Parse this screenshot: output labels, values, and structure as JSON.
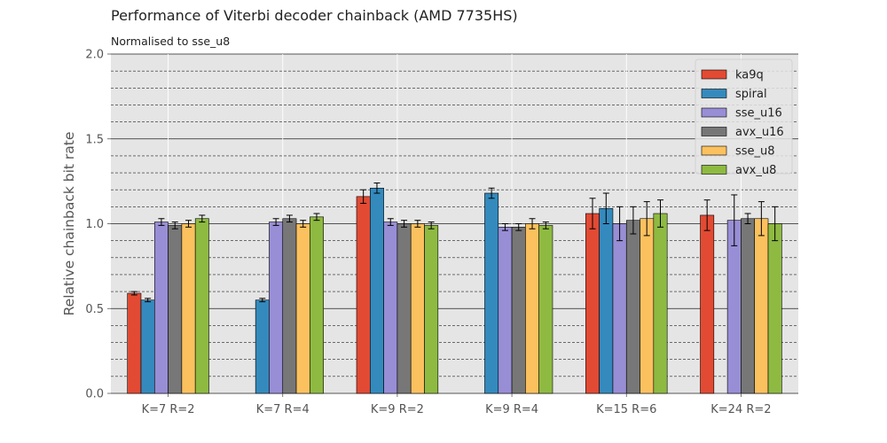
{
  "chart_data": {
    "type": "bar",
    "title": "Performance of Viterbi decoder chainback (AMD 7735HS)",
    "subtitle": "Normalised to sse_u8",
    "xlabel": "",
    "ylabel": "Relative chainback bit rate",
    "ylim": [
      0,
      2.0
    ],
    "yticks": [
      "0.0",
      "0.5",
      "1.0",
      "1.5",
      "2.0"
    ],
    "grid": true,
    "legend_position": "top-right",
    "categories": [
      "K=7 R=2",
      "K=7 R=4",
      "K=9 R=2",
      "K=9 R=4",
      "K=15 R=6",
      "K=24 R=2"
    ],
    "series": [
      {
        "name": "ka9q",
        "color": "#E24A33",
        "values": [
          0.59,
          null,
          1.16,
          null,
          1.06,
          1.05
        ],
        "errors": [
          0.01,
          null,
          0.04,
          null,
          0.09,
          0.09
        ]
      },
      {
        "name": "spiral",
        "color": "#348ABD",
        "values": [
          0.55,
          0.55,
          1.21,
          1.18,
          1.09,
          null
        ],
        "errors": [
          0.01,
          0.01,
          0.03,
          0.03,
          0.09,
          null
        ]
      },
      {
        "name": "sse_u16",
        "color": "#988ED5",
        "values": [
          1.01,
          1.01,
          1.01,
          0.98,
          1.0,
          1.02
        ],
        "errors": [
          0.02,
          0.02,
          0.02,
          0.02,
          0.1,
          0.15
        ]
      },
      {
        "name": "avx_u16",
        "color": "#777777",
        "values": [
          0.99,
          1.03,
          1.0,
          0.98,
          1.02,
          1.03
        ],
        "errors": [
          0.02,
          0.02,
          0.02,
          0.02,
          0.08,
          0.03
        ]
      },
      {
        "name": "sse_u8",
        "color": "#FBC15E",
        "values": [
          1.0,
          1.0,
          1.0,
          1.0,
          1.03,
          1.03
        ],
        "errors": [
          0.02,
          0.02,
          0.02,
          0.03,
          0.1,
          0.1
        ]
      },
      {
        "name": "avx_u8",
        "color": "#8EBA42",
        "values": [
          1.03,
          1.04,
          0.99,
          0.99,
          1.06,
          1.0
        ],
        "errors": [
          0.02,
          0.02,
          0.02,
          0.02,
          0.08,
          0.1
        ]
      }
    ]
  }
}
